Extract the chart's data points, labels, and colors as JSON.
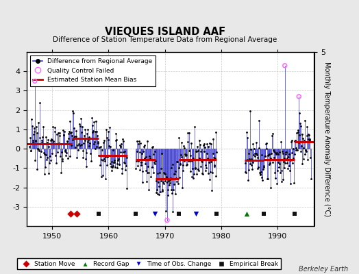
{
  "title": "VIEQUES ISLAND AAF",
  "subtitle": "Difference of Station Temperature Data from Regional Average",
  "ylabel": "Monthly Temperature Anomaly Difference (°C)",
  "xlabel_years": [
    1950,
    1960,
    1970,
    1980,
    1990
  ],
  "ylim": [
    -4,
    5
  ],
  "yticks": [
    -3,
    -2,
    -1,
    0,
    1,
    2,
    3,
    4
  ],
  "background_color": "#e8e8e8",
  "plot_bg_color": "#ffffff",
  "line_color": "#3333cc",
  "dot_color": "#000000",
  "bias_color": "#cc0000",
  "qc_color": "#ff66ff",
  "station_move_color": "#cc0000",
  "record_gap_color": "#007700",
  "tobs_color": "#0000cc",
  "empirical_color": "#111111",
  "watermark": "Berkeley Earth",
  "xlim_start": 1945.5,
  "xlim_end": 1996.5,
  "segment_biases": [
    {
      "start": 1945.5,
      "end": 1953.5,
      "bias": 0.25
    },
    {
      "start": 1953.5,
      "end": 1958.2,
      "bias": 0.55
    },
    {
      "start": 1958.2,
      "end": 1963.3,
      "bias": -0.35
    },
    {
      "start": 1964.8,
      "end": 1968.3,
      "bias": -0.55
    },
    {
      "start": 1968.3,
      "end": 1972.5,
      "bias": -1.55
    },
    {
      "start": 1972.5,
      "end": 1979.2,
      "bias": -0.55
    },
    {
      "start": 1984.2,
      "end": 1987.5,
      "bias": -0.6
    },
    {
      "start": 1987.5,
      "end": 1993.0,
      "bias": -0.55
    },
    {
      "start": 1993.0,
      "end": 1996.5,
      "bias": 0.35
    }
  ],
  "data_gaps": [
    {
      "start": 1963.3,
      "end": 1964.8
    },
    {
      "start": 1979.2,
      "end": 1984.2
    }
  ],
  "station_moves": [
    1953.2,
    1954.4
  ],
  "record_gaps": [
    1984.5
  ],
  "tobs_changes": [
    1968.2,
    1975.5
  ],
  "empirical_breaks": [
    1958.2,
    1964.8,
    1972.5,
    1979.2,
    1987.5,
    1993.0
  ],
  "qc_fails": [
    {
      "year": 1946.9,
      "value": 3.5
    },
    {
      "year": 1970.4,
      "value": -3.7
    },
    {
      "year": 1991.3,
      "value": 4.3
    },
    {
      "year": 1993.8,
      "value": 2.7
    }
  ],
  "event_y": -3.35
}
